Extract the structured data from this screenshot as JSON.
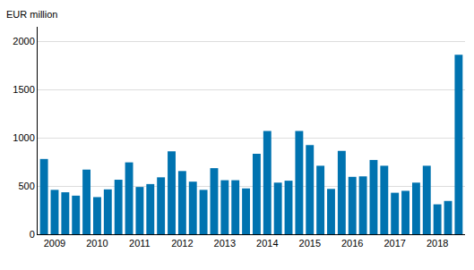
{
  "chart_data": {
    "type": "bar",
    "ylabel": "EUR million",
    "categories": [
      null,
      "2009",
      null,
      null,
      null,
      "2010",
      null,
      null,
      null,
      "2011",
      null,
      null,
      null,
      "2012",
      null,
      null,
      null,
      "2013",
      null,
      null,
      null,
      "2014",
      null,
      null,
      null,
      "2015",
      null,
      null,
      null,
      "2016",
      null,
      null,
      null,
      "2017",
      null,
      null,
      null,
      "2018",
      null,
      null
    ],
    "values": [
      780,
      460,
      435,
      400,
      670,
      385,
      465,
      565,
      745,
      490,
      520,
      590,
      860,
      655,
      545,
      460,
      685,
      560,
      560,
      475,
      835,
      1070,
      535,
      555,
      1070,
      925,
      710,
      470,
      865,
      595,
      600,
      770,
      710,
      430,
      450,
      535,
      710,
      310,
      345,
      1860
    ],
    "color": "#0073b0",
    "ylim": [
      0,
      2150
    ],
    "yticks": [
      0,
      500,
      1000,
      1500,
      2000
    ],
    "grid": true
  }
}
